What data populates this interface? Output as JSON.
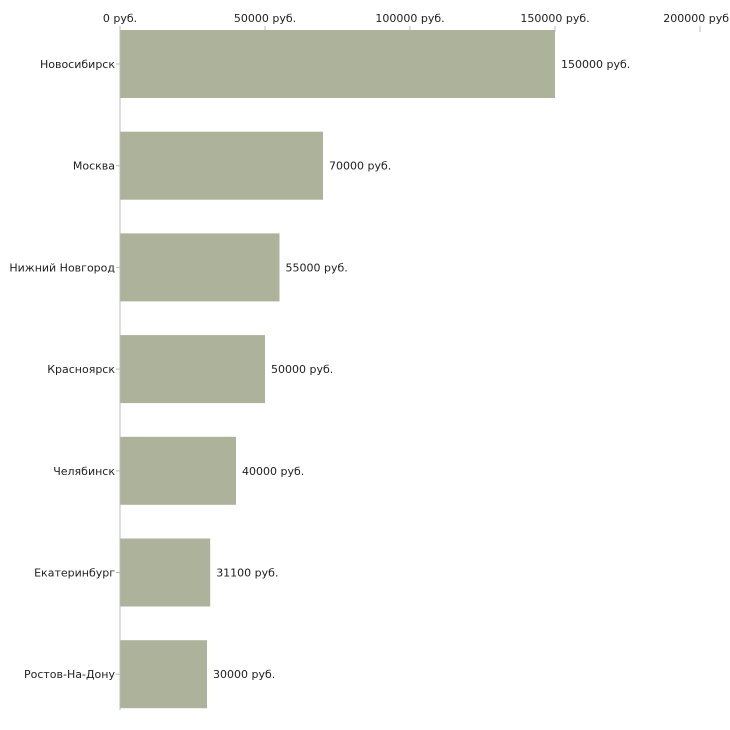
{
  "chart_data": {
    "type": "bar",
    "orientation": "horizontal",
    "title": "",
    "xlabel": "",
    "ylabel": "",
    "xlim": [
      0,
      200000
    ],
    "grid": false,
    "tick_values": [
      0,
      50000,
      100000,
      150000,
      200000
    ],
    "tick_labels": [
      "0 руб.",
      "50000 руб.",
      "100000 руб.",
      "150000 руб.",
      "200000 руб"
    ],
    "categories": [
      "Новосибирск",
      "Москва",
      "Нижний Новгород",
      "Красноярск",
      "Челябинск",
      "Екатеринбург",
      "Ростов-На-Дону"
    ],
    "values": [
      150000,
      70000,
      55000,
      50000,
      40000,
      31100,
      30000
    ],
    "value_labels": [
      "150000 руб.",
      "70000 руб.",
      "55000 руб.",
      "50000 руб.",
      "40000 руб.",
      "31100 руб.",
      "30000 руб."
    ],
    "bar_color": "#adb29a",
    "axis_color": "#bbbbbb"
  }
}
